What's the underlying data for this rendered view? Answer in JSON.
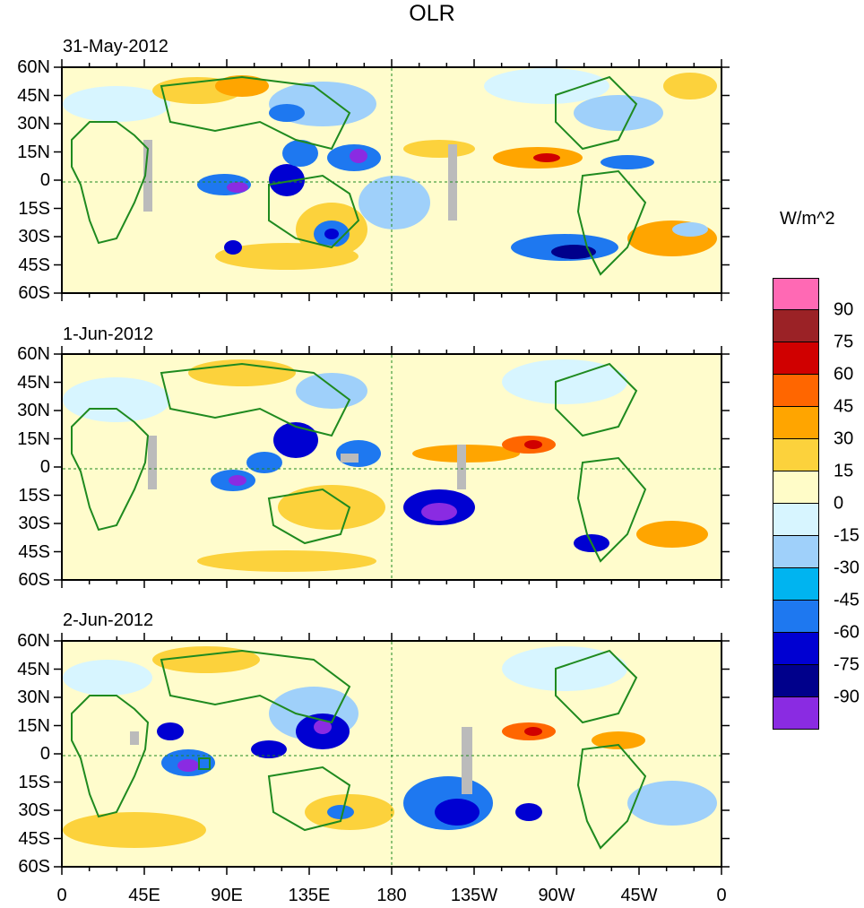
{
  "title": "OLR",
  "panels": [
    {
      "date": "31-May-2012"
    },
    {
      "date": "1-Jun-2012"
    },
    {
      "date": "2-Jun-2012"
    }
  ],
  "lat_labels": [
    "60N",
    "45N",
    "30N",
    "15N",
    "0",
    "15S",
    "30S",
    "45S",
    "60S"
  ],
  "lon_labels": [
    "0",
    "45E",
    "90E",
    "135E",
    "180",
    "135W",
    "90W",
    "45W",
    "0"
  ],
  "colorbar": {
    "units": "W/m^2",
    "labels": [
      "90",
      "75",
      "60",
      "45",
      "30",
      "15",
      "0",
      "-15",
      "-30",
      "-45",
      "-60",
      "-75",
      "-90"
    ],
    "colors": [
      "#ff69b4",
      "#9b2226",
      "#d00000",
      "#ff6600",
      "#ffa500",
      "#fcd23c",
      "#fffcc8",
      "#d7f5ff",
      "#9fd0fa",
      "#00b4f0",
      "#1e78f0",
      "#0000d2",
      "#00008b",
      "#8a2be2"
    ]
  },
  "colors": {
    "coastline": "#1f8a1f",
    "missing": "#bbbbbb",
    "background": "#fffccc"
  }
}
